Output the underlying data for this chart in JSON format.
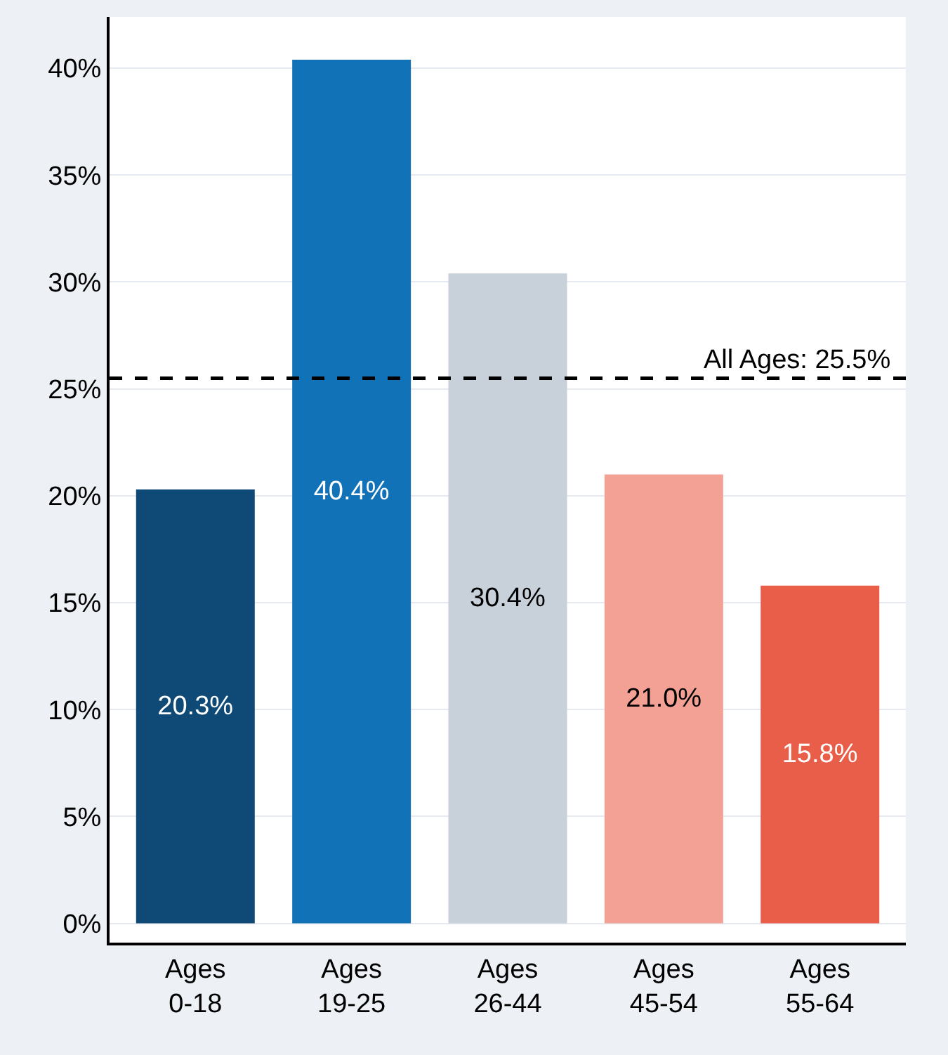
{
  "chart_data": {
    "type": "bar",
    "categories": [
      "Ages 0-18",
      "Ages 19-25",
      "Ages 26-44",
      "Ages 45-54",
      "Ages 55-64"
    ],
    "values": [
      20.3,
      40.4,
      30.4,
      21.0,
      15.8
    ],
    "colors": [
      "#0e4a75",
      "#1272b8",
      "#c8d0da",
      "#f2a194",
      "#e85e48"
    ],
    "value_labels": [
      "20.3%",
      "40.4%",
      "30.4%",
      "21.0%",
      "15.8%"
    ],
    "ylim": [
      -0.9,
      42.4
    ],
    "yticks": [
      {
        "value": 0,
        "label": "0%"
      },
      {
        "value": 5,
        "label": "5%"
      },
      {
        "value": 10,
        "label": "10%"
      },
      {
        "value": 15,
        "label": "15%"
      },
      {
        "value": 20,
        "label": "20%"
      },
      {
        "value": 25,
        "label": "25%"
      },
      {
        "value": 30,
        "label": "30%"
      },
      {
        "value": 35,
        "label": "35%"
      },
      {
        "value": 40,
        "label": "40%"
      }
    ],
    "grid": "y",
    "legend": false,
    "ref_lines": [
      {
        "axis": "y",
        "value": 25.5,
        "label": "All Ages: 25.5%",
        "color": "#000000",
        "line_style": "dashed"
      }
    ]
  }
}
